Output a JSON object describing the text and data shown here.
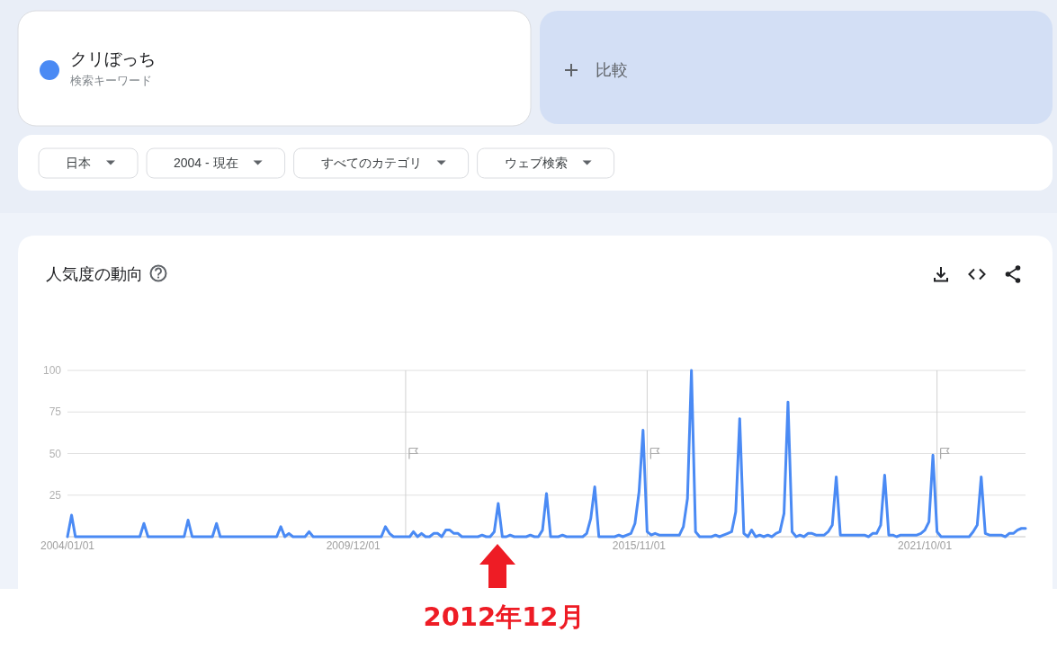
{
  "chart_data": {
    "type": "line",
    "title": "人気度の動向",
    "x": [
      "2004-01",
      "2004-02",
      "2004-03",
      "2005-07",
      "2005-08",
      "2005-09",
      "2006-06",
      "2006-07",
      "2006-08",
      "2007-01",
      "2007-02",
      "2007-03",
      "2008-05",
      "2008-06",
      "2008-07",
      "2008-08",
      "2008-09",
      "2008-12",
      "2009-01",
      "2009-02",
      "2010-07",
      "2010-08",
      "2010-09",
      "2010-10",
      "2011-02",
      "2011-03",
      "2011-04",
      "2011-05",
      "2011-06",
      "2011-07",
      "2011-08",
      "2011-09",
      "2011-10",
      "2011-11",
      "2011-12",
      "2012-01",
      "2012-02",
      "2012-03",
      "2012-07",
      "2012-08",
      "2012-09",
      "2012-10",
      "2012-11",
      "2012-12",
      "2013-01",
      "2013-02",
      "2013-03",
      "2013-04",
      "2013-07",
      "2013-08",
      "2013-09",
      "2013-10",
      "2013-11",
      "2013-12",
      "2014-01",
      "2014-03",
      "2014-04",
      "2014-05",
      "2014-09",
      "2014-10",
      "2014-11",
      "2014-12",
      "2015-01",
      "2015-05",
      "2015-06",
      "2015-07",
      "2015-08",
      "2015-09",
      "2015-10",
      "2015-11",
      "2015-12",
      "2016-01",
      "2016-02",
      "2016-03",
      "2016-04",
      "2016-09",
      "2016-10",
      "2016-11",
      "2016-12",
      "2017-01",
      "2017-02",
      "2017-05",
      "2017-06",
      "2017-07",
      "2017-08",
      "2017-09",
      "2017-10",
      "2017-11",
      "2017-12",
      "2018-01",
      "2018-02",
      "2018-03",
      "2018-04",
      "2018-05",
      "2018-06",
      "2018-07",
      "2018-08",
      "2018-09",
      "2018-10",
      "2018-11",
      "2018-12",
      "2019-01",
      "2019-02",
      "2019-03",
      "2019-04",
      "2019-05",
      "2019-06",
      "2019-07",
      "2019-09",
      "2019-10",
      "2019-11",
      "2019-12",
      "2020-01",
      "2020-07",
      "2020-08",
      "2020-09",
      "2020-10",
      "2020-11",
      "2020-12",
      "2021-01",
      "2021-02",
      "2021-03",
      "2021-04",
      "2021-08",
      "2021-09",
      "2021-10",
      "2021-11",
      "2021-12",
      "2022-01",
      "2022-02",
      "2022-09",
      "2022-10",
      "2022-11",
      "2022-12",
      "2023-01",
      "2023-02",
      "2023-05",
      "2023-06",
      "2023-07",
      "2023-08",
      "2023-09",
      "2023-10",
      "2023-11"
    ],
    "series": [
      {
        "name": "クリぼっち",
        "color": "#4a8af4",
        "values": [
          0,
          13,
          0,
          0,
          8,
          0,
          0,
          10,
          0,
          0,
          8,
          0,
          0,
          6,
          0,
          2,
          0,
          0,
          3,
          0,
          0,
          6,
          2,
          0,
          0,
          3,
          0,
          2,
          0,
          0,
          2,
          2,
          0,
          4,
          4,
          2,
          2,
          0,
          0,
          1,
          0,
          0,
          3,
          20,
          0,
          0,
          1,
          0,
          0,
          1,
          0,
          0,
          4,
          26,
          0,
          0,
          1,
          0,
          0,
          2,
          11,
          30,
          0,
          0,
          1,
          0,
          1,
          2,
          8,
          27,
          64,
          3,
          1,
          2,
          1,
          1,
          6,
          23,
          100,
          3,
          0,
          0,
          1,
          0,
          1,
          2,
          3,
          15,
          71,
          2,
          0,
          4,
          0,
          1,
          0,
          1,
          0,
          2,
          3,
          14,
          81,
          3,
          0,
          1,
          0,
          2,
          2,
          1,
          1,
          3,
          7,
          36,
          1,
          1,
          0,
          2,
          2,
          7,
          37,
          1,
          1,
          0,
          1,
          1,
          2,
          4,
          9,
          49,
          3,
          0,
          0,
          3,
          7,
          36,
          2,
          1,
          1,
          0,
          2,
          2,
          4,
          5,
          5
        ]
      }
    ],
    "xlim": [
      "2004-01-01",
      "2023-11-01"
    ],
    "xticks": [
      {
        "value": "2004-01-01",
        "label": "2004/01/01"
      },
      {
        "value": "2009-12-01",
        "label": "2009/12/01"
      },
      {
        "value": "2015-11-01",
        "label": "2015/11/01"
      },
      {
        "value": "2021-10-01",
        "label": "2021/10/01"
      }
    ],
    "ylim": [
      0,
      100
    ],
    "yticks": [
      {
        "value": 0,
        "label": null
      },
      25,
      50,
      75,
      100
    ],
    "grid": "y",
    "legend": "top left",
    "ref_lines": [
      {
        "axis": "x",
        "value": "2011-01-01",
        "label": null,
        "color": "#d0d0d0"
      },
      {
        "axis": "x",
        "value": "2016-01-01",
        "label": null,
        "color": "#d0d0d0"
      },
      {
        "axis": "x",
        "value": "2022-01-01",
        "label": null,
        "color": "#d0d0d0"
      }
    ],
    "annotations": [
      "検索キーワード",
      "比較",
      "日本",
      "2004 - 現在",
      "すべてのカテゴリ",
      "ウェブ検索",
      "2012年12月"
    ]
  }
}
